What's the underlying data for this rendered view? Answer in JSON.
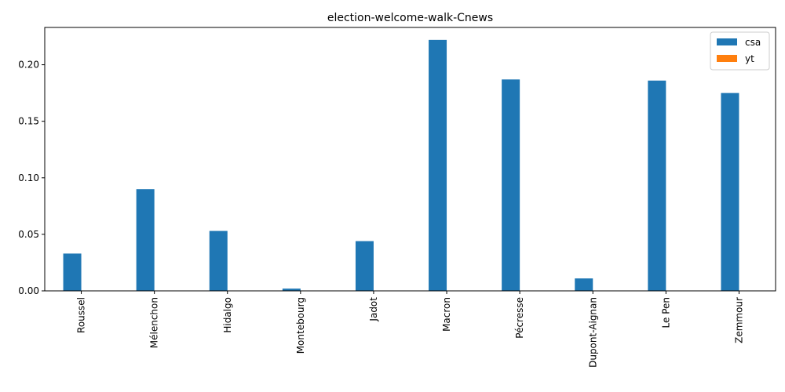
{
  "chart_data": {
    "type": "bar",
    "title": "election-welcome-walk-Cnews",
    "xlabel": "",
    "ylabel": "",
    "categories": [
      "Roussel",
      "Mélenchon",
      "Hidalgo",
      "Montebourg",
      "Jadot",
      "Macron",
      "Pécresse",
      "Dupont-Aignan",
      "Le Pen",
      "Zemmour"
    ],
    "series": [
      {
        "name": "csa",
        "color": "#1f77b4",
        "values": [
          0.033,
          0.09,
          0.053,
          0.002,
          0.044,
          0.222,
          0.187,
          0.011,
          0.186,
          0.175
        ]
      },
      {
        "name": "yt",
        "color": "#ff7f0e",
        "values": [
          0,
          0,
          0,
          0,
          0,
          0,
          0,
          0,
          0,
          0
        ]
      }
    ],
    "ylim": [
      0,
      0.233
    ],
    "yticks": [
      0.0,
      0.05,
      0.1,
      0.15,
      0.2
    ],
    "ytick_labels": [
      "0.00",
      "0.05",
      "0.10",
      "0.15",
      "0.20"
    ],
    "legend_position": "top-right",
    "grid": false
  }
}
